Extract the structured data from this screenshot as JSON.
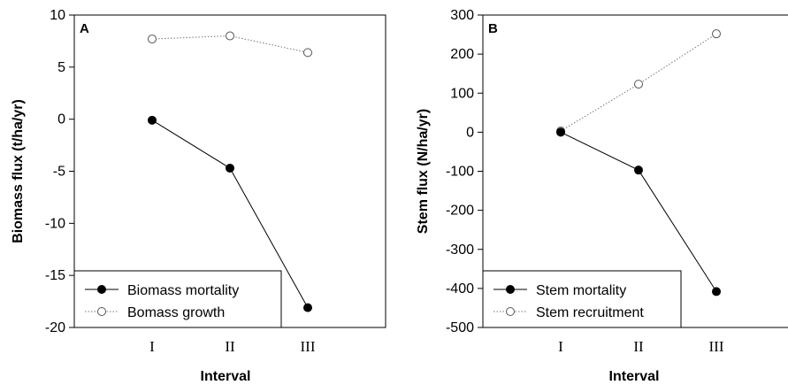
{
  "chart_data": [
    {
      "type": "line",
      "panel_label": "A",
      "categories": [
        "I",
        "II",
        "III"
      ],
      "xlabel": "Interval",
      "ylabel": "Biomass flux (t/ha/yr)",
      "ylim": [
        -20,
        10
      ],
      "yticks": [
        -20,
        -15,
        -10,
        -5,
        0,
        5,
        10
      ],
      "legend_position": "bottom-left",
      "series": [
        {
          "name": "Biomass mortality",
          "values": [
            -0.1,
            -4.7,
            -18.1
          ],
          "marker": "filled-circle",
          "line": "solid"
        },
        {
          "name": "Bomass growth",
          "values": [
            7.7,
            8.0,
            6.4
          ],
          "marker": "open-circle",
          "line": "dotted"
        }
      ]
    },
    {
      "type": "line",
      "panel_label": "B",
      "categories": [
        "I",
        "II",
        "III"
      ],
      "xlabel": "Interval",
      "ylabel": "Stem flux (N/ha/yr)",
      "ylim": [
        -500,
        300
      ],
      "yticks": [
        -500,
        -400,
        -300,
        -200,
        -100,
        0,
        100,
        200,
        300
      ],
      "legend_position": "bottom-left",
      "series": [
        {
          "name": "Stem mortality",
          "values": [
            0,
            -97,
            -408
          ],
          "marker": "filled-circle",
          "line": "solid"
        },
        {
          "name": "Stem recruitment",
          "values": [
            3,
            123,
            252
          ],
          "marker": "open-circle",
          "line": "dotted"
        }
      ]
    }
  ]
}
